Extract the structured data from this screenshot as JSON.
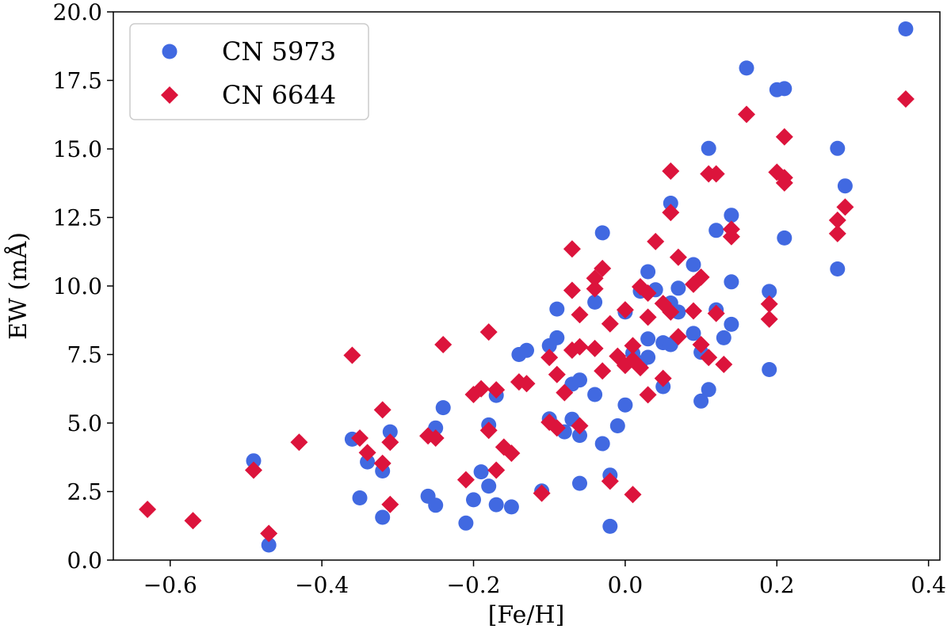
{
  "chart_data": {
    "type": "scatter",
    "xlabel": "[Fe/H]",
    "ylabel": "EW (mÅ)",
    "xlim": [
      -0.675,
      0.415
    ],
    "ylim": [
      0.0,
      20.0
    ],
    "xticks": [
      -0.6,
      -0.4,
      -0.2,
      0.0,
      0.2,
      0.4
    ],
    "xtick_labels": [
      "−0.6",
      "−0.4",
      "−0.2",
      "0.0",
      "0.2",
      "0.4"
    ],
    "yticks": [
      0.0,
      2.5,
      5.0,
      7.5,
      10.0,
      12.5,
      15.0,
      17.5,
      20.0
    ],
    "ytick_labels": [
      "0.0",
      "2.5",
      "5.0",
      "7.5",
      "10.0",
      "12.5",
      "15.0",
      "17.5",
      "20.0"
    ],
    "grid": false,
    "legend_position": "top-left",
    "series": [
      {
        "name": "CN 5973",
        "marker": "circle",
        "color": "#4169E1",
        "points": [
          [
            -0.49,
            3.62
          ],
          [
            -0.47,
            0.55
          ],
          [
            -0.36,
            4.41
          ],
          [
            -0.35,
            2.27
          ],
          [
            -0.34,
            3.58
          ],
          [
            -0.32,
            3.25
          ],
          [
            -0.32,
            1.56
          ],
          [
            -0.31,
            4.68
          ],
          [
            -0.26,
            2.33
          ],
          [
            -0.25,
            4.82
          ],
          [
            -0.25,
            2.0
          ],
          [
            -0.24,
            5.56
          ],
          [
            -0.21,
            1.35
          ],
          [
            -0.2,
            2.2
          ],
          [
            -0.19,
            3.22
          ],
          [
            -0.18,
            4.93
          ],
          [
            -0.18,
            2.7
          ],
          [
            -0.17,
            6.01
          ],
          [
            -0.17,
            2.02
          ],
          [
            -0.15,
            1.94
          ],
          [
            -0.14,
            7.5
          ],
          [
            -0.13,
            7.65
          ],
          [
            -0.11,
            2.52
          ],
          [
            -0.1,
            7.82
          ],
          [
            -0.1,
            5.15
          ],
          [
            -0.09,
            9.16
          ],
          [
            -0.09,
            8.11
          ],
          [
            -0.08,
            4.68
          ],
          [
            -0.07,
            6.42
          ],
          [
            -0.07,
            5.14
          ],
          [
            -0.06,
            6.57
          ],
          [
            -0.06,
            4.55
          ],
          [
            -0.06,
            2.8
          ],
          [
            -0.04,
            9.41
          ],
          [
            -0.04,
            6.04
          ],
          [
            -0.03,
            11.94
          ],
          [
            -0.03,
            4.25
          ],
          [
            -0.02,
            3.1
          ],
          [
            -0.02,
            1.23
          ],
          [
            -0.01,
            4.9
          ],
          [
            0.0,
            9.05
          ],
          [
            0.0,
            5.66
          ],
          [
            0.01,
            7.55
          ],
          [
            0.02,
            9.81
          ],
          [
            0.02,
            7.2
          ],
          [
            0.03,
            10.52
          ],
          [
            0.03,
            8.07
          ],
          [
            0.03,
            7.4
          ],
          [
            0.04,
            9.86
          ],
          [
            0.05,
            7.93
          ],
          [
            0.05,
            6.33
          ],
          [
            0.06,
            13.02
          ],
          [
            0.06,
            9.38
          ],
          [
            0.06,
            7.86
          ],
          [
            0.07,
            9.92
          ],
          [
            0.07,
            9.05
          ],
          [
            0.09,
            10.78
          ],
          [
            0.09,
            8.27
          ],
          [
            0.1,
            7.58
          ],
          [
            0.1,
            5.8
          ],
          [
            0.11,
            15.02
          ],
          [
            0.11,
            6.22
          ],
          [
            0.12,
            12.03
          ],
          [
            0.12,
            9.13
          ],
          [
            0.13,
            8.11
          ],
          [
            0.14,
            12.58
          ],
          [
            0.14,
            10.15
          ],
          [
            0.14,
            8.6
          ],
          [
            0.16,
            17.95
          ],
          [
            0.19,
            9.8
          ],
          [
            0.19,
            6.95
          ],
          [
            0.2,
            17.16
          ],
          [
            0.21,
            17.2
          ],
          [
            0.21,
            11.75
          ],
          [
            0.28,
            15.02
          ],
          [
            0.28,
            10.62
          ],
          [
            0.29,
            13.65
          ],
          [
            0.37,
            19.38
          ]
        ]
      },
      {
        "name": "CN 6644",
        "marker": "diamond",
        "color": "#DC143C",
        "points": [
          [
            -0.63,
            1.85
          ],
          [
            -0.57,
            1.44
          ],
          [
            -0.49,
            3.28
          ],
          [
            -0.47,
            0.97
          ],
          [
            -0.43,
            4.3
          ],
          [
            -0.36,
            7.47
          ],
          [
            -0.35,
            4.45
          ],
          [
            -0.34,
            3.92
          ],
          [
            -0.32,
            5.48
          ],
          [
            -0.32,
            3.53
          ],
          [
            -0.31,
            4.3
          ],
          [
            -0.31,
            2.03
          ],
          [
            -0.26,
            4.53
          ],
          [
            -0.25,
            4.45
          ],
          [
            -0.24,
            7.86
          ],
          [
            -0.21,
            2.93
          ],
          [
            -0.2,
            6.04
          ],
          [
            -0.19,
            6.25
          ],
          [
            -0.18,
            8.32
          ],
          [
            -0.18,
            4.73
          ],
          [
            -0.17,
            6.21
          ],
          [
            -0.17,
            3.28
          ],
          [
            -0.16,
            4.12
          ],
          [
            -0.15,
            3.9
          ],
          [
            -0.14,
            6.5
          ],
          [
            -0.13,
            6.44
          ],
          [
            -0.11,
            2.44
          ],
          [
            -0.1,
            7.39
          ],
          [
            -0.1,
            5.03
          ],
          [
            -0.09,
            6.77
          ],
          [
            -0.09,
            4.82
          ],
          [
            -0.08,
            6.11
          ],
          [
            -0.07,
            11.35
          ],
          [
            -0.07,
            9.84
          ],
          [
            -0.07,
            7.66
          ],
          [
            -0.06,
            8.95
          ],
          [
            -0.06,
            7.78
          ],
          [
            -0.06,
            4.9
          ],
          [
            -0.04,
            10.28
          ],
          [
            -0.04,
            9.9
          ],
          [
            -0.04,
            7.72
          ],
          [
            -0.03,
            10.64
          ],
          [
            -0.03,
            6.9
          ],
          [
            -0.02,
            8.62
          ],
          [
            -0.02,
            2.88
          ],
          [
            -0.01,
            7.44
          ],
          [
            0.0,
            9.13
          ],
          [
            0.0,
            7.1
          ],
          [
            0.01,
            7.82
          ],
          [
            0.01,
            7.3
          ],
          [
            0.01,
            2.39
          ],
          [
            0.02,
            9.97
          ],
          [
            0.02,
            7.02
          ],
          [
            0.03,
            9.74
          ],
          [
            0.03,
            8.86
          ],
          [
            0.03,
            6.03
          ],
          [
            0.04,
            11.62
          ],
          [
            0.05,
            9.36
          ],
          [
            0.05,
            6.63
          ],
          [
            0.06,
            14.19
          ],
          [
            0.06,
            12.68
          ],
          [
            0.06,
            9.05
          ],
          [
            0.07,
            11.05
          ],
          [
            0.07,
            8.15
          ],
          [
            0.09,
            10.06
          ],
          [
            0.09,
            9.09
          ],
          [
            0.1,
            10.32
          ],
          [
            0.1,
            7.86
          ],
          [
            0.11,
            14.09
          ],
          [
            0.11,
            7.39
          ],
          [
            0.12,
            14.09
          ],
          [
            0.12,
            9.0
          ],
          [
            0.13,
            7.14
          ],
          [
            0.14,
            12.07
          ],
          [
            0.14,
            11.8
          ],
          [
            0.16,
            16.26
          ],
          [
            0.19,
            9.34
          ],
          [
            0.19,
            8.79
          ],
          [
            0.2,
            14.15
          ],
          [
            0.21,
            13.95
          ],
          [
            0.21,
            13.76
          ],
          [
            0.21,
            15.44
          ],
          [
            0.28,
            12.4
          ],
          [
            0.28,
            11.91
          ],
          [
            0.29,
            12.88
          ],
          [
            0.37,
            16.82
          ]
        ]
      }
    ]
  }
}
